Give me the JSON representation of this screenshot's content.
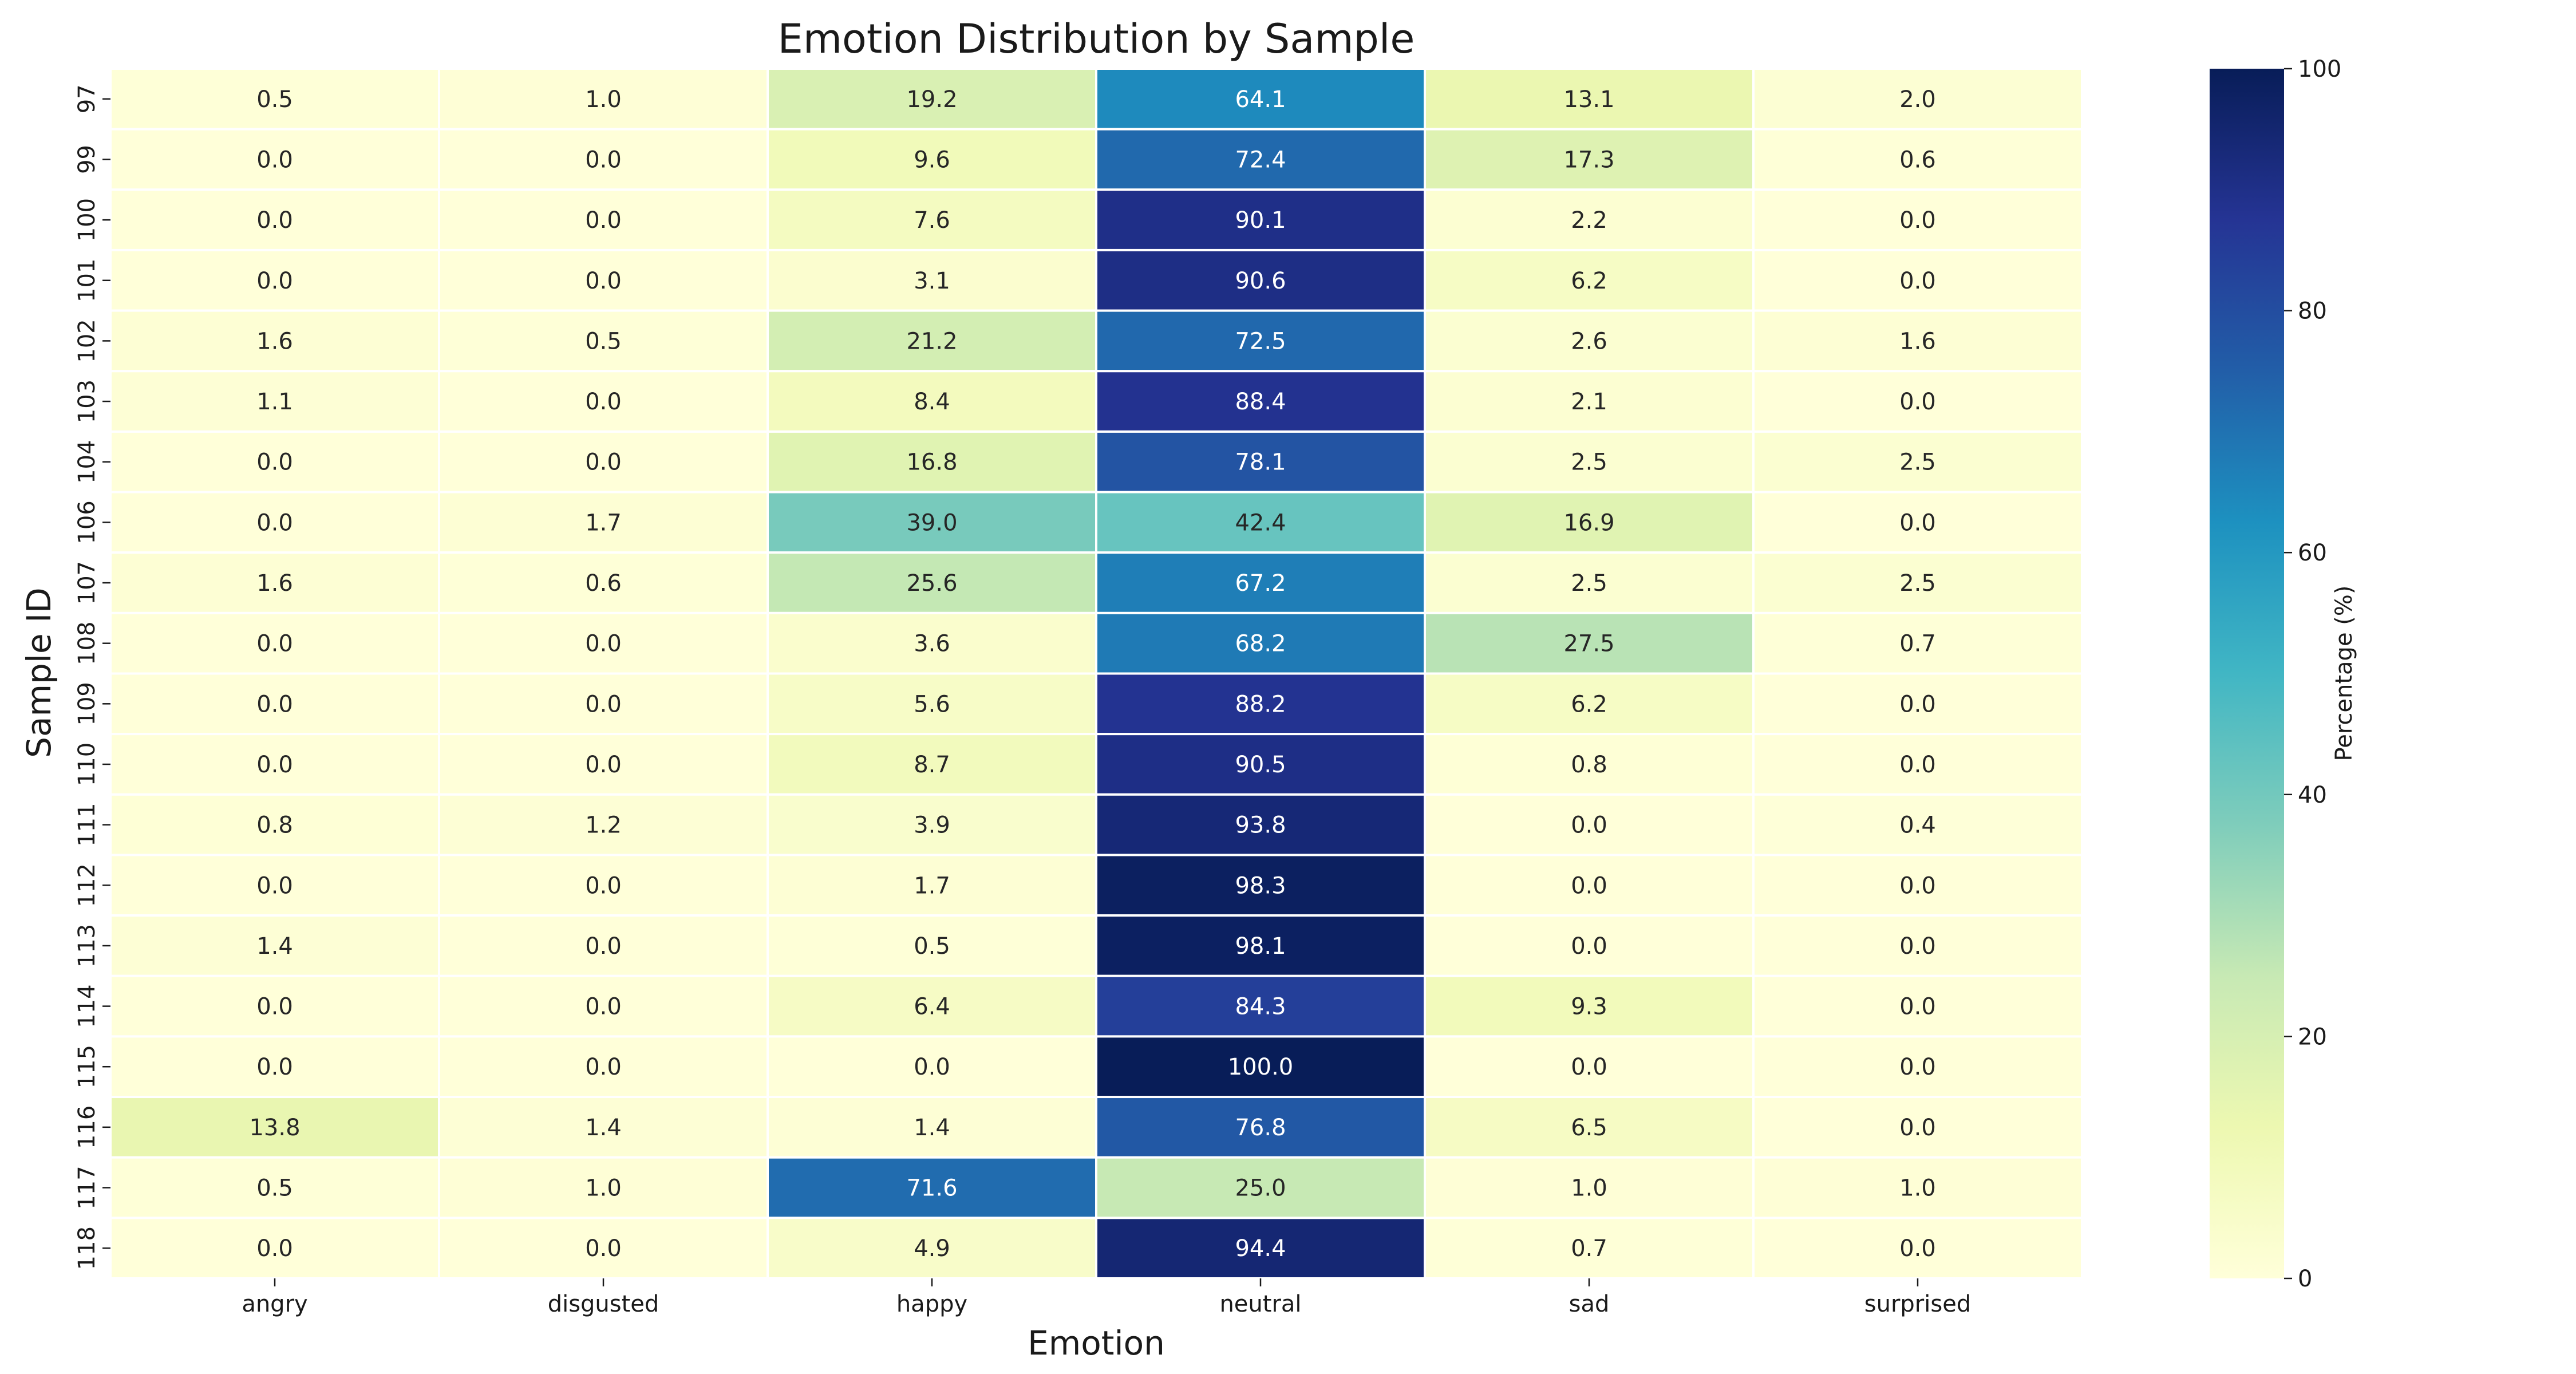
{
  "chart_data": {
    "type": "heatmap",
    "title": "Emotion Distribution by Sample",
    "xlabel": "Emotion",
    "ylabel": "Sample ID",
    "colorbar_label": "Percentage (%)",
    "colormap": "YlGnBu",
    "value_range": [
      0,
      100
    ],
    "colorbar_ticks": [
      "0",
      "20",
      "40",
      "60",
      "80",
      "100"
    ],
    "columns": [
      "angry",
      "disgusted",
      "happy",
      "neutral",
      "sad",
      "surprised"
    ],
    "rows": [
      "97",
      "99",
      "100",
      "101",
      "102",
      "103",
      "104",
      "106",
      "107",
      "108",
      "109",
      "110",
      "111",
      "112",
      "113",
      "114",
      "115",
      "116",
      "117",
      "118"
    ],
    "values": [
      [
        0.5,
        1.0,
        19.2,
        64.1,
        13.1,
        2.0
      ],
      [
        0.0,
        0.0,
        9.6,
        72.4,
        17.3,
        0.6
      ],
      [
        0.0,
        0.0,
        7.6,
        90.1,
        2.2,
        0.0
      ],
      [
        0.0,
        0.0,
        3.1,
        90.6,
        6.2,
        0.0
      ],
      [
        1.6,
        0.5,
        21.2,
        72.5,
        2.6,
        1.6
      ],
      [
        1.1,
        0.0,
        8.4,
        88.4,
        2.1,
        0.0
      ],
      [
        0.0,
        0.0,
        16.8,
        78.1,
        2.5,
        2.5
      ],
      [
        0.0,
        1.7,
        39.0,
        42.4,
        16.9,
        0.0
      ],
      [
        1.6,
        0.6,
        25.6,
        67.2,
        2.5,
        2.5
      ],
      [
        0.0,
        0.0,
        3.6,
        68.2,
        27.5,
        0.7
      ],
      [
        0.0,
        0.0,
        5.6,
        88.2,
        6.2,
        0.0
      ],
      [
        0.0,
        0.0,
        8.7,
        90.5,
        0.8,
        0.0
      ],
      [
        0.8,
        1.2,
        3.9,
        93.8,
        0.0,
        0.4
      ],
      [
        0.0,
        0.0,
        1.7,
        98.3,
        0.0,
        0.0
      ],
      [
        1.4,
        0.0,
        0.5,
        98.1,
        0.0,
        0.0
      ],
      [
        0.0,
        0.0,
        6.4,
        84.3,
        9.3,
        0.0
      ],
      [
        0.0,
        0.0,
        0.0,
        100.0,
        0.0,
        0.0
      ],
      [
        13.8,
        1.4,
        1.4,
        76.8,
        6.5,
        0.0
      ],
      [
        0.5,
        1.0,
        71.6,
        25.0,
        1.0,
        1.0
      ],
      [
        0.0,
        0.0,
        4.9,
        94.4,
        0.7,
        0.0
      ]
    ]
  }
}
